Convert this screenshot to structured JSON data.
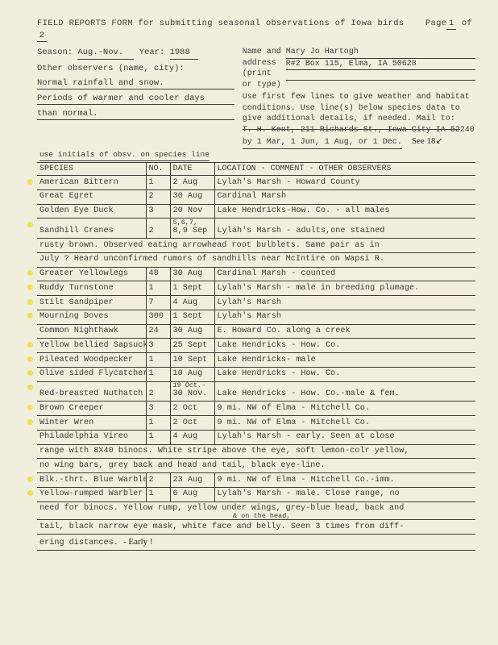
{
  "header": {
    "title": "FIELD REPORTS FORM for submitting seasonal observations of Iowa birds",
    "page_label": "Page",
    "page_cur": "1",
    "page_of": "of",
    "page_total": "2",
    "season_label": "Season:",
    "season": "Aug.-Nov.",
    "year_label": "Year:",
    "year": "1988",
    "name_label1": "Name and",
    "name_label2": "address",
    "name_label3": "(print",
    "name_label4": "or type)",
    "name": "Mary Jo Hartogh",
    "address": "R#2 Box 115, Elma, IA 50628",
    "other_obs_label": "Other observers (name, city):",
    "weather1": "Normal rainfall and snow.",
    "weather2": "Periods of warmer and cooler days",
    "weather3": "than normal.",
    "instr1": "Use first few lines to give weather and habitat",
    "instr2": "conditions. Use line(s) below species data to",
    "instr3": "give additional details, if needed. Mail to:",
    "instr4_strike": "T. H. Kent, 211 Richards St., Iowa City IA 52",
    "instr4_end": "240",
    "instr5": "by 1 Mar, 1 Jun, 1 Aug, or 1 Dec.",
    "instr5_hand": "See 18↙",
    "opt_line": "use initials of obsv. on species line"
  },
  "cols": {
    "c1": "SPECIES",
    "c2": "NO.",
    "c3": "DATE",
    "c4": "LOCATION - COMMENT - OTHER OBSERVERS"
  },
  "rows": [
    {
      "dot": 1,
      "s": "American Bittern",
      "n": "1",
      "d": "2 Aug",
      "c": "Lylah's Marsh - Howard County"
    },
    {
      "s": "Great Egret",
      "n": "2",
      "d": "30 Aug",
      "c": "Cardinal Marsh"
    },
    {
      "s": "Golden Eye Duck",
      "n": "3",
      "d": "20 Nov",
      "c": "Lake Hendricks-How. Co. - all males"
    },
    {
      "dot": 1,
      "s": "Sandhill Cranes",
      "n": "2",
      "d_top": "5,6,7,",
      "d": "8,9 Sep",
      "c": "Lylah's Marsh - adults,one stained"
    },
    {
      "full": "rusty brown.  Observed eating arrowhead root bulblets. Same pair as in"
    },
    {
      "full": "July ?   Heard unconfirmed rumors of sandhills near McIntire on Wapsi R."
    },
    {
      "dot": 1,
      "s": "Greater Yellowlegs",
      "n": "48",
      "d": "30 Aug",
      "c": "Cardinal Marsh - counted"
    },
    {
      "dot": 1,
      "s": "Ruddy Turnstone",
      "n": "1",
      "d": "1 Sept",
      "c": "Lylah's Marsh - male in breeding plumage."
    },
    {
      "dot": 1,
      "s": "Stilt Sandpiper",
      "n": "7",
      "d": "4 Aug",
      "c": "Lylah's Marsh"
    },
    {
      "dot": 1,
      "s": "Mourning Doves",
      "n": "300",
      "d": "1 Sept",
      "c": "Lylah's Marsh"
    },
    {
      "s": "Common Nighthawk",
      "n": "24",
      "d": "30 Aug",
      "c": "E. Howard Co. along a creek"
    },
    {
      "dot": 1,
      "s": "Yellow bellied Sapsucker",
      "n": "3",
      "d": "25 Sept",
      "c": "Lake Hendricks - How. Co."
    },
    {
      "dot": 1,
      "s": "Pileated Woodpecker",
      "n": "1",
      "d": "10 Sept",
      "c": "Lake Hendricks- male"
    },
    {
      "dot": 1,
      "s": "Olive sided Flycatcher",
      "n": "1",
      "d": "10 Aug",
      "c": "Lake Hendricks - How. Co."
    },
    {
      "dot": 1,
      "s": "Red-breasted Nuthatch",
      "n": "2",
      "d_top": "19 Oct.-",
      "d": "30 Nov.",
      "c": "Lake Hendricks - How. Co.-male & fem."
    },
    {
      "dot": 1,
      "s": "Brown Creeper",
      "n": "3",
      "d": "2 Oct",
      "c": "9 mi. NW of Elma - Mitchell Co."
    },
    {
      "dot": 1,
      "s": "Winter Wren",
      "n": "1",
      "d": "2 Oct",
      "c": "9 mi. NW of Elma - Mitchell Co."
    },
    {
      "s": "Philadelphia Vireo",
      "n": "1",
      "d": "4 Aug",
      "c": "Lylah's Marsh - early.  Seen at close"
    },
    {
      "full": "range with 8X40 binocs. White stripe above the eye, soft lemon-colr yellow,"
    },
    {
      "full": "no wing bars, grey back and head and tail, black eye-line."
    },
    {
      "dot": 1,
      "s": "Blk.-thrt. Blue Warbler",
      "n": "2",
      "d": "23 Aug",
      "c": "9 mi. NW of Elma - Mitchell Co.-imm."
    },
    {
      "dot": 1,
      "s": "Yellow-rumped Warbler",
      "n": "1",
      "d": "6 Aug",
      "c": "Lylah's Marsh - male. Close range, no"
    },
    {
      "full_html": "need for binocs. Yellow rump, yellow under wings, grey-blue head, back and",
      "carat": "& on the head,"
    },
    {
      "full": "tail, black narrow eye mask, white face and belly. Seen 3 times from diff-"
    },
    {
      "full_last": "ering distances.",
      "hand": "- Early !"
    }
  ]
}
